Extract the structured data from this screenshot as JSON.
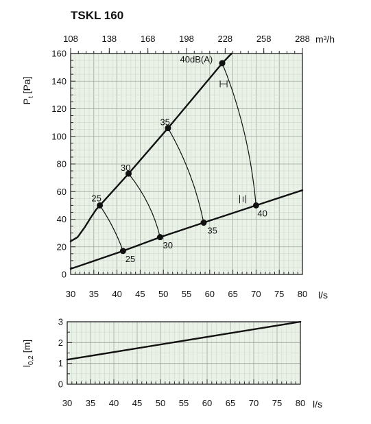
{
  "chart_data": [
    {
      "type": "line",
      "title": "TSKL 160",
      "xlabel": "l/s",
      "ylabel_main": "P",
      "ylabel_sub": "t",
      "ylabel_unit": "[Pa]",
      "top_axis_unit": "m³/h",
      "xlim": [
        30,
        80
      ],
      "ylim": [
        0,
        160
      ],
      "x_ticks": [
        30,
        35,
        40,
        45,
        50,
        55,
        60,
        65,
        70,
        75,
        80
      ],
      "x_tick_labels": [
        "30",
        "35",
        "40",
        "45",
        "50",
        "55",
        "60",
        "65",
        "70",
        "75",
        "80"
      ],
      "y_ticks": [
        0,
        20,
        40,
        60,
        80,
        100,
        120,
        140,
        160
      ],
      "y_tick_labels": [
        "0",
        "20",
        "40",
        "60",
        "80",
        "100",
        "120",
        "140",
        "160"
      ],
      "top_ticks_x": [
        30,
        38.333,
        46.667,
        55,
        63.333,
        71.667,
        80
      ],
      "top_tick_labels": [
        "108",
        "138",
        "168",
        "198",
        "228",
        "258",
        "288"
      ],
      "grid": true,
      "background": "#eaf2e8",
      "series": [
        {
          "role": "upper-line",
          "x": [
            30,
            31.5,
            33,
            34.5,
            35.5,
            36.3,
            42.5,
            51,
            62.7,
            64.7
          ],
          "y": [
            24,
            27,
            34,
            42,
            47,
            50,
            73,
            106,
            153,
            160
          ]
        },
        {
          "role": "lower-line",
          "x": [
            30,
            41.3,
            49.3,
            58.7,
            70,
            80
          ],
          "y": [
            4,
            17,
            27,
            37.5,
            50,
            61
          ]
        },
        {
          "role": "sound-curve",
          "x": [
            36.3,
            39.5,
            41.3
          ],
          "y": [
            50,
            34,
            17
          ]
        },
        {
          "role": "sound-curve",
          "x": [
            42.5,
            47.5,
            49.3
          ],
          "y": [
            73,
            52,
            27
          ]
        },
        {
          "role": "sound-curve",
          "x": [
            51,
            56.5,
            58.7
          ],
          "y": [
            106,
            74,
            37.5
          ]
        },
        {
          "role": "sound-curve",
          "x": [
            62.7,
            68.5,
            70
          ],
          "y": [
            153,
            105,
            50
          ]
        }
      ],
      "points": [
        {
          "x": 36.3,
          "y": 50
        },
        {
          "x": 42.5,
          "y": 73
        },
        {
          "x": 51,
          "y": 106
        },
        {
          "x": 62.7,
          "y": 153
        },
        {
          "x": 41.3,
          "y": 17
        },
        {
          "x": 49.3,
          "y": 27
        },
        {
          "x": 58.7,
          "y": 37.5
        },
        {
          "x": 70,
          "y": 50
        }
      ],
      "annotations": [
        {
          "text": "25",
          "x": 34.5,
          "y": 53
        },
        {
          "text": "30",
          "x": 40.8,
          "y": 75
        },
        {
          "text": "35",
          "x": 49.3,
          "y": 108
        },
        {
          "text": "40dB(A)",
          "x": 53.6,
          "y": 153.5
        },
        {
          "text": "25",
          "x": 41.8,
          "y": 9
        },
        {
          "text": "30",
          "x": 49.9,
          "y": 19
        },
        {
          "text": "35",
          "x": 59.5,
          "y": 29.5
        },
        {
          "text": "40",
          "x": 70.3,
          "y": 42
        }
      ]
    },
    {
      "type": "line",
      "xlabel": "l/s",
      "ylabel_main": "l",
      "ylabel_sub": "0,2",
      "ylabel_unit": "[m]",
      "xlim": [
        30,
        80
      ],
      "ylim": [
        0,
        3
      ],
      "x_ticks": [
        30,
        35,
        40,
        45,
        50,
        55,
        60,
        65,
        70,
        75,
        80
      ],
      "x_tick_labels": [
        "30",
        "35",
        "40",
        "45",
        "50",
        "55",
        "60",
        "65",
        "70",
        "75",
        "80"
      ],
      "y_ticks": [
        0,
        1,
        2,
        3
      ],
      "y_tick_labels": [
        "0",
        "1",
        "2",
        "3"
      ],
      "grid": true,
      "background": "#eaf2e8",
      "series": [
        {
          "role": "throw-line",
          "x": [
            30,
            80
          ],
          "y": [
            1.18,
            3.0
          ]
        }
      ]
    }
  ]
}
